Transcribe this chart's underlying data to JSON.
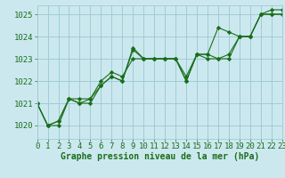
{
  "xlabel": "Graphe pression niveau de la mer (hPa)",
  "xlim": [
    0,
    23
  ],
  "ylim": [
    1019.4,
    1025.4
  ],
  "yticks": [
    1020,
    1021,
    1022,
    1023,
    1024,
    1025
  ],
  "xticks": [
    0,
    1,
    2,
    3,
    4,
    5,
    6,
    7,
    8,
    9,
    10,
    11,
    12,
    13,
    14,
    15,
    16,
    17,
    18,
    19,
    20,
    21,
    22,
    23
  ],
  "bg_color": "#cce8ef",
  "grid_color": "#9fccd6",
  "line_color": "#1a6e1a",
  "series": [
    [
      1021.0,
      1020.0,
      1020.0,
      1021.2,
      1021.0,
      1021.0,
      1021.8,
      1022.2,
      1022.0,
      1023.4,
      1023.0,
      1023.0,
      1023.0,
      1023.0,
      1022.0,
      1023.2,
      1023.0,
      1023.0,
      1023.0,
      1024.0,
      1024.0,
      1025.0,
      1025.0,
      1025.0
    ],
    [
      1021.0,
      1020.0,
      1020.2,
      1021.2,
      1021.0,
      1021.2,
      1022.0,
      1022.4,
      1022.2,
      1023.0,
      1023.0,
      1023.0,
      1023.0,
      1023.0,
      1022.0,
      1023.2,
      1023.2,
      1024.4,
      1024.2,
      1024.0,
      1024.0,
      1025.0,
      1025.0,
      1025.0
    ],
    [
      1021.0,
      1020.0,
      1020.2,
      1021.2,
      1021.2,
      1021.2,
      1021.8,
      1022.2,
      1022.0,
      1023.5,
      1023.0,
      1023.0,
      1023.0,
      1023.0,
      1022.2,
      1023.2,
      1023.2,
      1023.0,
      1023.2,
      1024.0,
      1024.0,
      1025.0,
      1025.2,
      1025.2
    ]
  ],
  "font_color": "#1a6e1a",
  "font_size_label": 7.0,
  "font_size_tick": 6.5,
  "marker": "D",
  "marker_size": 2.2,
  "linewidth": 0.8
}
